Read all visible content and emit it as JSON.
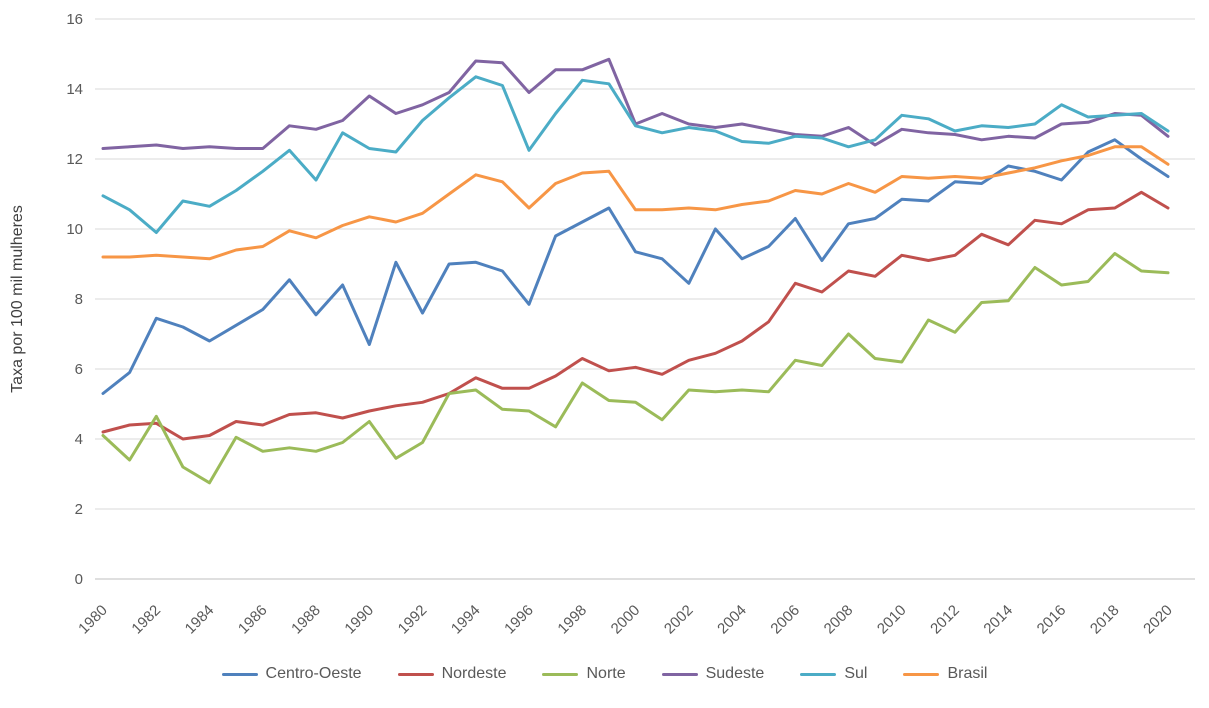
{
  "chart_data": {
    "type": "line",
    "title": "",
    "xlabel": "",
    "ylabel": "Taxa por 100 mil mulheres",
    "ylim": [
      0,
      16
    ],
    "yticks": [
      0,
      2,
      4,
      6,
      8,
      10,
      12,
      14,
      16
    ],
    "xticks": [
      1980,
      1982,
      1984,
      1986,
      1988,
      1990,
      1992,
      1994,
      1996,
      1998,
      2000,
      2002,
      2004,
      2006,
      2008,
      2010,
      2012,
      2014,
      2016,
      2018,
      2020
    ],
    "grid": "horizontal",
    "legend_position": "bottom",
    "x": [
      1980,
      1981,
      1982,
      1983,
      1984,
      1985,
      1986,
      1987,
      1988,
      1989,
      1990,
      1991,
      1992,
      1993,
      1994,
      1995,
      1996,
      1997,
      1998,
      1999,
      2000,
      2001,
      2002,
      2003,
      2004,
      2005,
      2006,
      2007,
      2008,
      2009,
      2010,
      2011,
      2012,
      2013,
      2014,
      2015,
      2016,
      2017,
      2018,
      2019,
      2020
    ],
    "series": [
      {
        "name": "Centro-Oeste",
        "color": "#4F81BD",
        "values": [
          5.3,
          5.9,
          7.45,
          7.2,
          6.8,
          7.25,
          7.7,
          8.55,
          7.55,
          8.4,
          6.7,
          9.05,
          7.6,
          9.0,
          9.05,
          8.8,
          7.85,
          9.8,
          10.2,
          10.6,
          9.35,
          9.15,
          8.45,
          10.0,
          9.15,
          9.5,
          10.3,
          9.1,
          10.15,
          10.3,
          10.85,
          10.8,
          11.35,
          11.3,
          11.8,
          11.65,
          11.4,
          12.2,
          12.55,
          12.0,
          11.5
        ]
      },
      {
        "name": "Nordeste",
        "color": "#C0504D",
        "values": [
          4.2,
          4.4,
          4.45,
          4.0,
          4.1,
          4.5,
          4.4,
          4.7,
          4.75,
          4.6,
          4.8,
          4.95,
          5.05,
          5.3,
          5.75,
          5.45,
          5.45,
          5.8,
          6.3,
          5.95,
          6.05,
          5.85,
          6.25,
          6.45,
          6.8,
          7.35,
          8.45,
          8.2,
          8.8,
          8.65,
          9.25,
          9.1,
          9.25,
          9.85,
          9.55,
          10.25,
          10.15,
          10.55,
          10.6,
          11.05,
          10.6
        ]
      },
      {
        "name": "Norte",
        "color": "#9BBB59",
        "values": [
          4.1,
          3.4,
          4.65,
          3.2,
          2.75,
          4.05,
          3.65,
          3.75,
          3.65,
          3.9,
          4.5,
          3.45,
          3.9,
          5.3,
          5.4,
          4.85,
          4.8,
          4.35,
          5.6,
          5.1,
          5.05,
          4.55,
          5.4,
          5.35,
          5.4,
          5.35,
          6.25,
          6.1,
          7.0,
          6.3,
          6.2,
          7.4,
          7.05,
          7.9,
          7.95,
          8.9,
          8.4,
          8.5,
          9.3,
          8.8,
          8.75
        ]
      },
      {
        "name": "Sudeste",
        "color": "#8064A2",
        "values": [
          12.3,
          12.35,
          12.4,
          12.3,
          12.35,
          12.3,
          12.3,
          12.95,
          12.85,
          13.1,
          13.8,
          13.3,
          13.55,
          13.9,
          14.8,
          14.75,
          13.9,
          14.55,
          14.55,
          14.85,
          13.0,
          13.3,
          13.0,
          12.9,
          13.0,
          12.85,
          12.7,
          12.65,
          12.9,
          12.4,
          12.85,
          12.75,
          12.7,
          12.55,
          12.65,
          12.6,
          13.0,
          13.05,
          13.3,
          13.25,
          12.65
        ]
      },
      {
        "name": "Sul",
        "color": "#4BACC6",
        "values": [
          10.95,
          10.55,
          9.9,
          10.8,
          10.65,
          11.1,
          11.65,
          12.25,
          11.4,
          12.75,
          12.3,
          12.2,
          13.1,
          13.75,
          14.35,
          14.1,
          12.25,
          13.3,
          14.25,
          14.15,
          12.95,
          12.75,
          12.9,
          12.8,
          12.5,
          12.45,
          12.65,
          12.6,
          12.35,
          12.55,
          13.25,
          13.15,
          12.8,
          12.95,
          12.9,
          13.0,
          13.55,
          13.2,
          13.25,
          13.3,
          12.8
        ]
      },
      {
        "name": "Brasil",
        "color": "#F79646",
        "values": [
          9.2,
          9.2,
          9.25,
          9.2,
          9.15,
          9.4,
          9.5,
          9.95,
          9.75,
          10.1,
          10.35,
          10.2,
          10.45,
          11.0,
          11.55,
          11.35,
          10.6,
          11.3,
          11.6,
          11.65,
          10.55,
          10.55,
          10.6,
          10.55,
          10.7,
          10.8,
          11.1,
          11.0,
          11.3,
          11.05,
          11.5,
          11.45,
          11.5,
          11.45,
          11.6,
          11.75,
          11.95,
          12.1,
          12.35,
          12.35,
          11.85
        ]
      }
    ]
  }
}
